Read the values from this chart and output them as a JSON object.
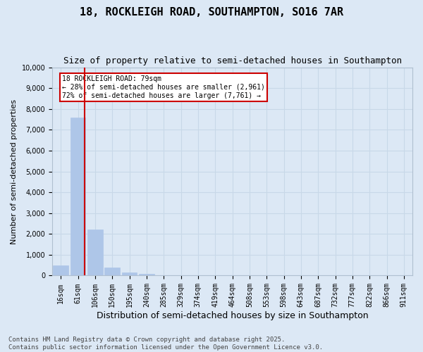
{
  "title1": "18, ROCKLEIGH ROAD, SOUTHAMPTON, SO16 7AR",
  "title2": "Size of property relative to semi-detached houses in Southampton",
  "xlabel": "Distribution of semi-detached houses by size in Southampton",
  "ylabel": "Number of semi-detached properties",
  "categories": [
    "16sqm",
    "61sqm",
    "106sqm",
    "150sqm",
    "195sqm",
    "240sqm",
    "285sqm",
    "329sqm",
    "374sqm",
    "419sqm",
    "464sqm",
    "508sqm",
    "553sqm",
    "598sqm",
    "643sqm",
    "687sqm",
    "732sqm",
    "777sqm",
    "822sqm",
    "866sqm",
    "911sqm"
  ],
  "values": [
    500,
    7600,
    2200,
    380,
    150,
    100,
    0,
    0,
    0,
    0,
    0,
    0,
    0,
    0,
    0,
    0,
    0,
    0,
    0,
    0,
    0
  ],
  "bar_color": "#aec6e8",
  "bar_edge_color": "#aec6e8",
  "grid_color": "#c8d8e8",
  "background_color": "#dce8f5",
  "red_line_x": 1.37,
  "annotation_text": "18 ROCKLEIGH ROAD: 79sqm\n← 28% of semi-detached houses are smaller (2,961)\n72% of semi-detached houses are larger (7,761) →",
  "annotation_box_color": "#ffffff",
  "annotation_border_color": "#cc0000",
  "red_line_color": "#cc0000",
  "ylim": [
    0,
    10000
  ],
  "yticks": [
    0,
    1000,
    2000,
    3000,
    4000,
    5000,
    6000,
    7000,
    8000,
    9000,
    10000
  ],
  "footer": "Contains HM Land Registry data © Crown copyright and database right 2025.\nContains public sector information licensed under the Open Government Licence v3.0.",
  "title1_fontsize": 11,
  "title2_fontsize": 9,
  "xlabel_fontsize": 9,
  "ylabel_fontsize": 8,
  "tick_fontsize": 7,
  "footer_fontsize": 6.5
}
